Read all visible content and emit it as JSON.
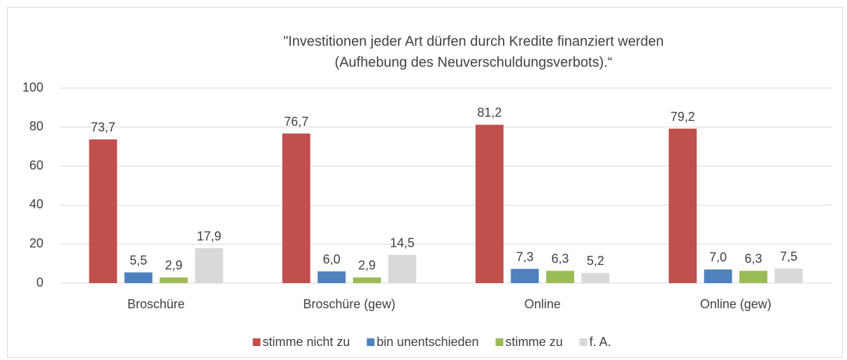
{
  "chart_data": {
    "type": "bar",
    "title": [
      "\"Investitionen jeder Art dürfen durch Kredite finanziert werden",
      "(Aufhebung des Neuverschuldungsverbots).“"
    ],
    "categories": [
      "Broschüre",
      "Broschüre (gew)",
      "Online",
      "Online (gew)"
    ],
    "series": [
      {
        "name": "stimme nicht zu",
        "color": "#c0504d",
        "values": [
          73.7,
          76.7,
          81.2,
          79.2
        ],
        "value_labels": [
          "73,7",
          "76,7",
          "81,2",
          "79,2"
        ]
      },
      {
        "name": "bin unentschieden",
        "color": "#4f81bd",
        "values": [
          5.5,
          6.0,
          7.3,
          7.0
        ],
        "value_labels": [
          "5,5",
          "6,0",
          "7,3",
          "7,0"
        ]
      },
      {
        "name": "stimme zu",
        "color": "#9bbb59",
        "values": [
          2.9,
          2.9,
          6.3,
          6.3
        ],
        "value_labels": [
          "2,9",
          "2,9",
          "6,3",
          "6,3"
        ]
      },
      {
        "name": "f. A.",
        "color": "#d9d9d9",
        "values": [
          17.9,
          14.5,
          5.2,
          7.5
        ],
        "value_labels": [
          "17,9",
          "14,5",
          "5,2",
          "7,5"
        ]
      }
    ],
    "ylim": [
      0,
      100
    ],
    "yticks": [
      0,
      20,
      40,
      60,
      80,
      100
    ],
    "grid": true,
    "legend": "bottom"
  }
}
